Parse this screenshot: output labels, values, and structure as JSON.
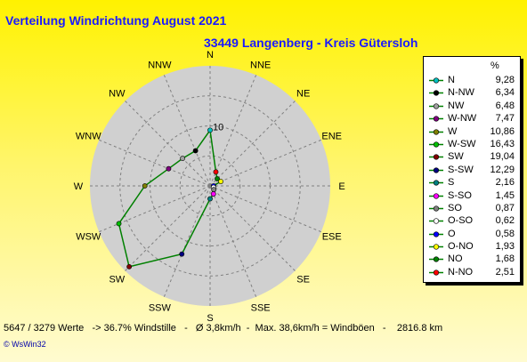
{
  "header": {
    "title": "Verteilung Windrichtung    August 2021",
    "subtitle": "33449 Langenberg - Kreis Gütersloh"
  },
  "colors": {
    "line": "#008000",
    "disc": "#d0d0d0",
    "grid": "#808080"
  },
  "chart_data": {
    "type": "radar",
    "directions": [
      "N",
      "NNE",
      "NE",
      "ENE",
      "E",
      "ESE",
      "SE",
      "SSE",
      "S",
      "SSW",
      "SW",
      "WSW",
      "W",
      "WNW",
      "NW",
      "NNW"
    ],
    "ring_label": "10",
    "rmax": 20,
    "rings": [
      5,
      10,
      15,
      20
    ],
    "legend_unit": "%",
    "series": [
      {
        "name": "N",
        "value": 9.28,
        "color": "#00c0c0"
      },
      {
        "name": "N-NW",
        "value": 6.34,
        "color": "#000000"
      },
      {
        "name": "NW",
        "value": 6.48,
        "color": "#a0a0a0"
      },
      {
        "name": "W-NW",
        "value": 7.47,
        "color": "#800080"
      },
      {
        "name": "W",
        "value": 10.86,
        "color": "#808000"
      },
      {
        "name": "W-SW",
        "value": 16.43,
        "color": "#00c000"
      },
      {
        "name": "SW",
        "value": 19.04,
        "color": "#800000"
      },
      {
        "name": "S-SW",
        "value": 12.29,
        "color": "#000080"
      },
      {
        "name": "S",
        "value": 2.16,
        "color": "#008080"
      },
      {
        "name": "S-SO",
        "value": 1.45,
        "color": "#ff00ff"
      },
      {
        "name": "SO",
        "value": 0.87,
        "color": "#808080"
      },
      {
        "name": "O-SO",
        "value": 0.62,
        "color": "#ffffff"
      },
      {
        "name": "O",
        "value": 0.58,
        "color": "#0000ff"
      },
      {
        "name": "O-NO",
        "value": 1.93,
        "color": "#ffff00"
      },
      {
        "name": "NO",
        "value": 1.68,
        "color": "#008000"
      },
      {
        "name": "N-NO",
        "value": 2.51,
        "color": "#ff0000"
      }
    ],
    "plot_order": [
      "N",
      "N-NO",
      "NO",
      "O-NO",
      "O",
      "O-SO",
      "SO",
      "S-SO",
      "S",
      "S-SW",
      "SW",
      "W-SW",
      "W",
      "W-NW",
      "NW",
      "N-NW"
    ]
  },
  "footer": {
    "stats": "5647 / 3279 Werte   -> 36.7% Windstille   -   Ø 3,8km/h  -  Max. 38,6km/h = Windböen   -    2816.8 km",
    "brand": "© WsWin32"
  }
}
